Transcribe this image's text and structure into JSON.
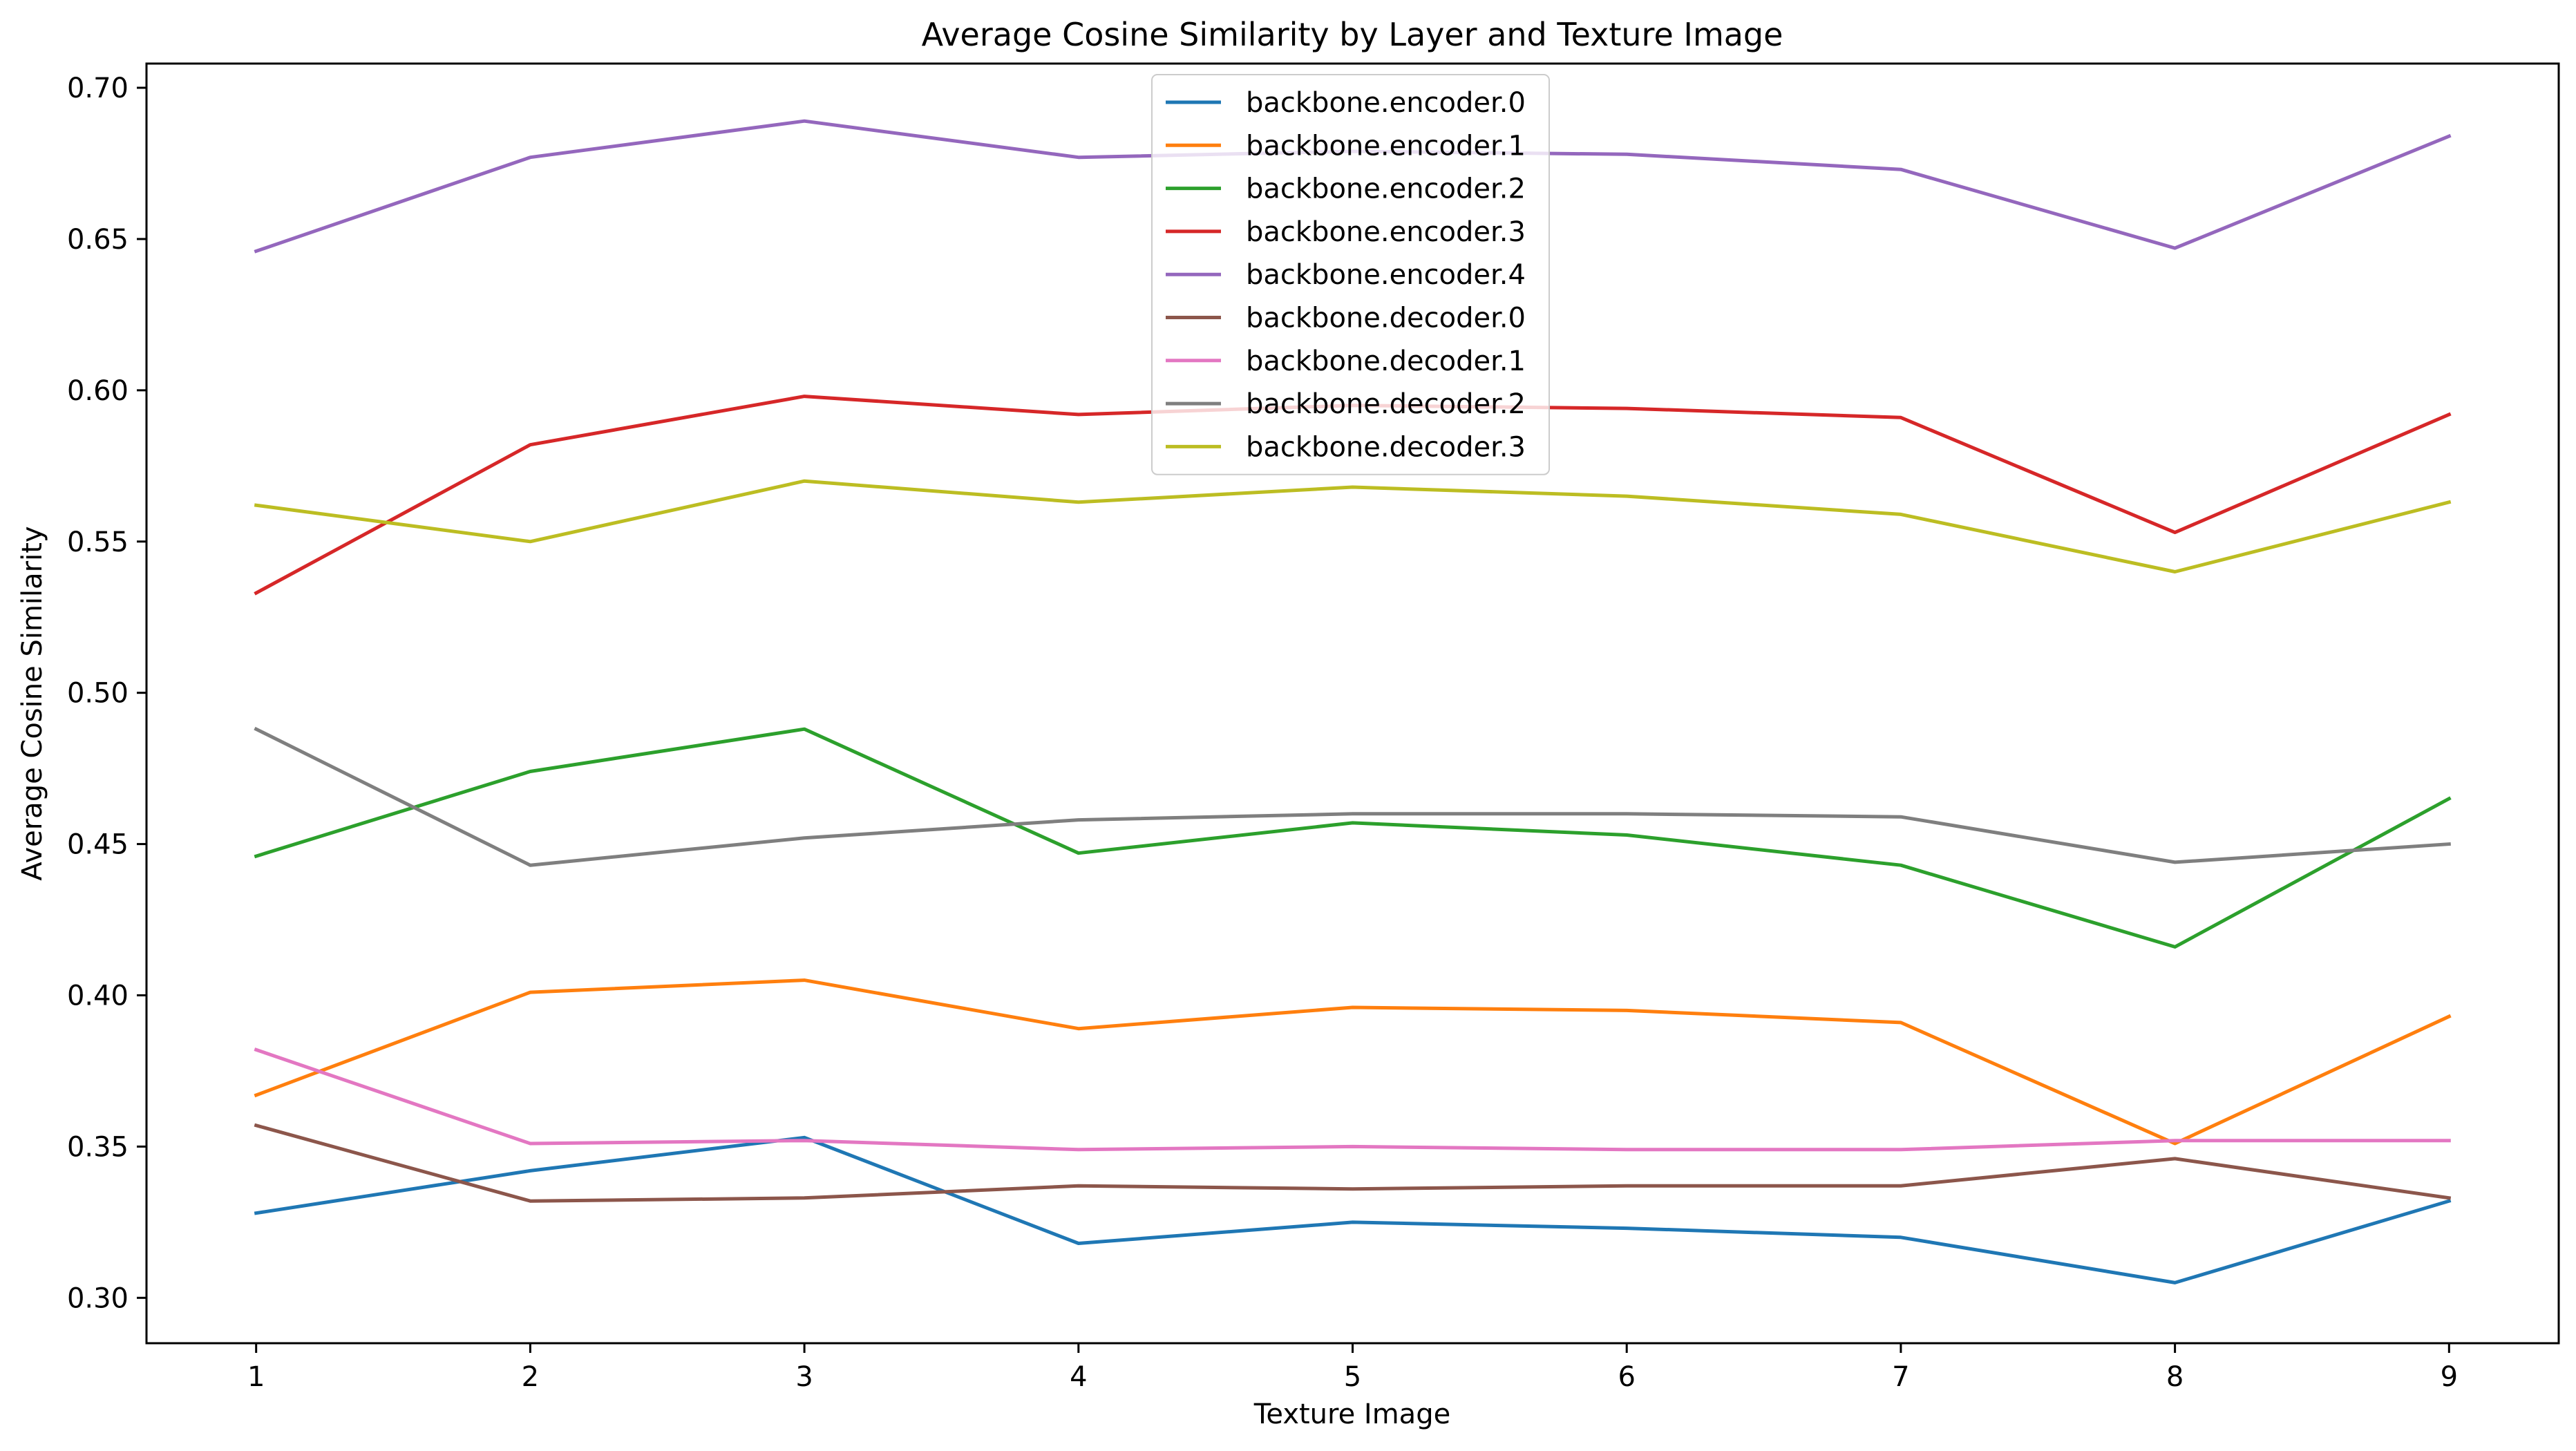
{
  "chart_data": {
    "type": "line",
    "title": "Average Cosine Similarity by Layer and Texture Image",
    "xlabel": "Texture Image",
    "ylabel": "Average Cosine Similarity",
    "x": [
      1,
      2,
      3,
      4,
      5,
      6,
      7,
      8,
      9
    ],
    "xlim": [
      0.6,
      9.4
    ],
    "ylim": [
      0.285,
      0.708
    ],
    "yticks": [
      0.3,
      0.35,
      0.4,
      0.45,
      0.5,
      0.55,
      0.6,
      0.65,
      0.7
    ],
    "ytick_labels": [
      "0.30",
      "0.35",
      "0.40",
      "0.45",
      "0.50",
      "0.55",
      "0.60",
      "0.65",
      "0.70"
    ],
    "xticks": [
      1,
      2,
      3,
      4,
      5,
      6,
      7,
      8,
      9
    ],
    "xtick_labels": [
      "1",
      "2",
      "3",
      "4",
      "5",
      "6",
      "7",
      "8",
      "9"
    ],
    "grid": false,
    "legend_position": "top-center",
    "series": [
      {
        "name": "backbone.encoder.0",
        "color": "#1f77b4",
        "values": [
          0.328,
          0.342,
          0.353,
          0.318,
          0.325,
          0.323,
          0.32,
          0.305,
          0.332
        ]
      },
      {
        "name": "backbone.encoder.1",
        "color": "#ff7f0e",
        "values": [
          0.367,
          0.401,
          0.405,
          0.389,
          0.396,
          0.395,
          0.391,
          0.351,
          0.393
        ]
      },
      {
        "name": "backbone.encoder.2",
        "color": "#2ca02c",
        "values": [
          0.446,
          0.474,
          0.488,
          0.447,
          0.457,
          0.453,
          0.443,
          0.416,
          0.465
        ]
      },
      {
        "name": "backbone.encoder.3",
        "color": "#d62728",
        "values": [
          0.533,
          0.582,
          0.598,
          0.592,
          0.595,
          0.594,
          0.591,
          0.553,
          0.592
        ]
      },
      {
        "name": "backbone.encoder.4",
        "color": "#9467bd",
        "values": [
          0.646,
          0.677,
          0.689,
          0.677,
          0.679,
          0.678,
          0.673,
          0.647,
          0.684
        ]
      },
      {
        "name": "backbone.decoder.0",
        "color": "#8c564b",
        "values": [
          0.357,
          0.332,
          0.333,
          0.337,
          0.336,
          0.337,
          0.337,
          0.346,
          0.333
        ]
      },
      {
        "name": "backbone.decoder.1",
        "color": "#e377c2",
        "values": [
          0.382,
          0.351,
          0.352,
          0.349,
          0.35,
          0.349,
          0.349,
          0.352,
          0.352
        ]
      },
      {
        "name": "backbone.decoder.2",
        "color": "#7f7f7f",
        "values": [
          0.488,
          0.443,
          0.452,
          0.458,
          0.46,
          0.46,
          0.459,
          0.444,
          0.45
        ]
      },
      {
        "name": "backbone.decoder.3",
        "color": "#bcbd22",
        "values": [
          0.562,
          0.55,
          0.57,
          0.563,
          0.568,
          0.565,
          0.559,
          0.54,
          0.563
        ]
      }
    ]
  }
}
